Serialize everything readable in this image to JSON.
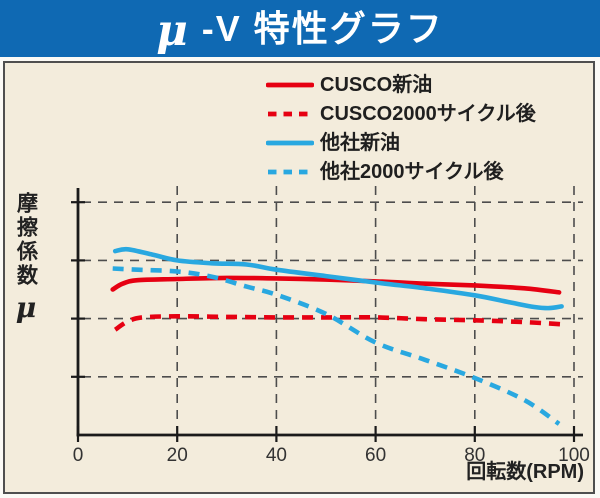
{
  "title": {
    "mu": "μ",
    "rest": "-V 特性グラフ"
  },
  "colors": {
    "titlebar": "#0f69b3",
    "title_text": "#ffffff",
    "panel_background": "#f3ecdc",
    "frame": "#4f4f4f",
    "cusco_red": "#e60012",
    "other_blue": "#29a8e0",
    "gridline": "#4d4d4d",
    "axis": "#1a1a1a",
    "label_text": "#222222"
  },
  "legend": {
    "items": [
      {
        "label": "CUSCO新油",
        "color": "#e60012",
        "style": "solid"
      },
      {
        "label": "CUSCO2000サイクル後",
        "color": "#e60012",
        "style": "dashed"
      },
      {
        "label": "他社新油",
        "color": "#29a8e0",
        "style": "solid"
      },
      {
        "label": "他社2000サイクル後",
        "color": "#29a8e0",
        "style": "dashed"
      }
    ]
  },
  "axes": {
    "x_label": "回転数(RPM)",
    "x_tick_labels": [
      "0",
      "20",
      "40",
      "60",
      "80",
      "100"
    ],
    "y_label": "摩擦係数",
    "y_label_symbol": "μ"
  },
  "chart_data": {
    "type": "line",
    "title": "μ-V 特性グラフ",
    "xlabel": "回転数(RPM)",
    "ylabel": "摩擦係数 μ (no numeric scale shown)",
    "xlim": [
      0,
      100
    ],
    "x_ticks": [
      0,
      20,
      40,
      60,
      80,
      100
    ],
    "y_axis": {
      "labeled": false,
      "gridline_units": [
        1,
        2,
        3,
        4
      ],
      "ylim_units": [
        0,
        4.3
      ]
    },
    "grid": "dashed, horizontal at each y tick and vertical at each x tick",
    "legend_position": "top-right above plot",
    "series": [
      {
        "name": "CUSCO新油",
        "color": "#e60012",
        "style": "solid",
        "points": [
          [
            7,
            2.5
          ],
          [
            9,
            2.6
          ],
          [
            12,
            2.66
          ],
          [
            20,
            2.68
          ],
          [
            30,
            2.7
          ],
          [
            40,
            2.69
          ],
          [
            50,
            2.67
          ],
          [
            60,
            2.64
          ],
          [
            70,
            2.6
          ],
          [
            80,
            2.57
          ],
          [
            90,
            2.52
          ],
          [
            97,
            2.45
          ]
        ]
      },
      {
        "name": "CUSCO2000サイクル後",
        "color": "#e60012",
        "style": "dashed",
        "points": [
          [
            7.5,
            1.81
          ],
          [
            10,
            1.95
          ],
          [
            13,
            2.02
          ],
          [
            20,
            2.04
          ],
          [
            30,
            2.03
          ],
          [
            40,
            2.02
          ],
          [
            50,
            2.02
          ],
          [
            60,
            2.02
          ],
          [
            70,
            1.99
          ],
          [
            80,
            1.97
          ],
          [
            90,
            1.94
          ],
          [
            98,
            1.9
          ]
        ]
      },
      {
        "name": "他社新油",
        "color": "#29a8e0",
        "style": "solid",
        "points": [
          [
            7.5,
            3.16
          ],
          [
            10,
            3.19
          ],
          [
            15,
            3.1
          ],
          [
            20,
            3.0
          ],
          [
            27,
            2.95
          ],
          [
            34,
            2.93
          ],
          [
            40,
            2.84
          ],
          [
            50,
            2.73
          ],
          [
            60,
            2.62
          ],
          [
            70,
            2.52
          ],
          [
            80,
            2.4
          ],
          [
            87,
            2.28
          ],
          [
            92,
            2.2
          ],
          [
            95,
            2.18
          ],
          [
            97.5,
            2.21
          ]
        ]
      },
      {
        "name": "他社2000サイクル後",
        "color": "#29a8e0",
        "style": "dashed",
        "points": [
          [
            7,
            2.86
          ],
          [
            12,
            2.84
          ],
          [
            20,
            2.81
          ],
          [
            27,
            2.72
          ],
          [
            34,
            2.55
          ],
          [
            40,
            2.41
          ],
          [
            50,
            2.08
          ],
          [
            60,
            1.59
          ],
          [
            70,
            1.29
          ],
          [
            80,
            0.98
          ],
          [
            90,
            0.6
          ],
          [
            97,
            0.19
          ]
        ]
      }
    ]
  }
}
